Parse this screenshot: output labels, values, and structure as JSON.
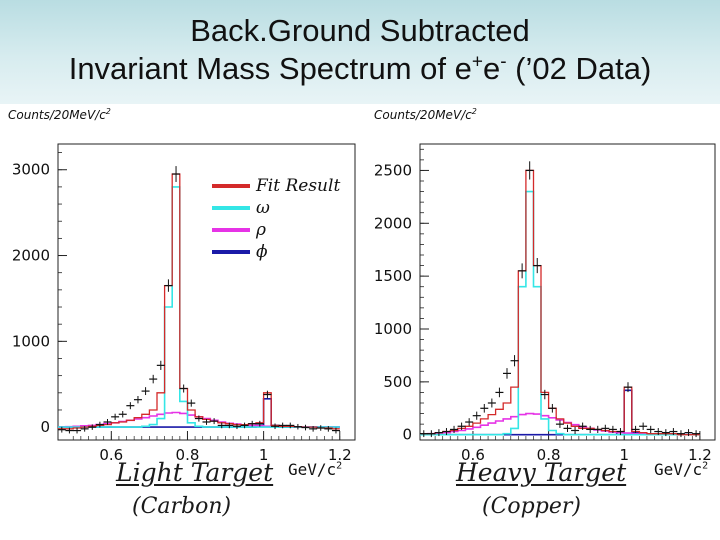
{
  "title": {
    "line1": "Back.Ground Subtracted",
    "line2_pre": "Invariant Mass Spectrum of e",
    "sup_plus": "+",
    "line2_mid": "e",
    "sup_minus": "-",
    "line2_post": " (’02 Data)"
  },
  "colors": {
    "fit": "#d42a2a",
    "omega": "#34e6e6",
    "rho": "#e633e6",
    "phi": "#1a1aa8",
    "header_bg": "#c8e6ea",
    "data": "#111111"
  },
  "legend": {
    "items": [
      {
        "label": "Fit Result",
        "color_key": "fit"
      },
      {
        "label": "ω",
        "color_key": "omega"
      },
      {
        "label": "ρ",
        "color_key": "rho"
      },
      {
        "label": "ϕ",
        "color_key": "phi"
      }
    ]
  },
  "panels": [
    {
      "ylabel_base": "Counts/20MeV/c",
      "ylabel_sup": "2",
      "unit_base": "GeV/c",
      "unit_sup": "2",
      "target_line1": "Light Target",
      "target_line2": "(Carbon)"
    },
    {
      "ylabel_base": "Counts/20MeV/c",
      "ylabel_sup": "2",
      "unit_base": "GeV/c",
      "unit_sup": "2",
      "target_line1": "Heavy Target",
      "target_line2": "(Copper)"
    }
  ],
  "chart_data": [
    {
      "type": "line",
      "name": "Light Target (Carbon)",
      "xlabel": "GeV/c2",
      "ylabel": "Counts/20MeV/c2",
      "xlim": [
        0.46,
        1.24
      ],
      "ylim": [
        -150,
        3300
      ],
      "xticks": [
        0.6,
        0.8,
        1,
        1.2
      ],
      "xtick_labels": [
        "0.6",
        "0.8",
        "1",
        "1.2"
      ],
      "yticks": [
        0,
        1000,
        2000,
        3000
      ],
      "ytick_labels": [
        "0",
        "1000",
        "2000",
        "3000"
      ],
      "x": [
        0.47,
        0.49,
        0.51,
        0.53,
        0.55,
        0.57,
        0.59,
        0.61,
        0.63,
        0.65,
        0.67,
        0.69,
        0.71,
        0.73,
        0.75,
        0.77,
        0.79,
        0.81,
        0.83,
        0.85,
        0.87,
        0.89,
        0.91,
        0.93,
        0.95,
        0.97,
        0.99,
        1.01,
        1.03,
        1.05,
        1.07,
        1.09,
        1.11,
        1.13,
        1.15,
        1.17,
        1.19
      ],
      "data": [
        -30,
        -40,
        -40,
        -20,
        0,
        30,
        60,
        120,
        150,
        250,
        320,
        420,
        560,
        720,
        1650,
        2950,
        450,
        280,
        100,
        60,
        70,
        20,
        20,
        10,
        20,
        40,
        40,
        380,
        10,
        20,
        20,
        5,
        -5,
        -20,
        -10,
        -20,
        -40
      ],
      "series": [
        {
          "name": "Fit Result",
          "color_key": "fit",
          "values": [
            -20,
            -20,
            -10,
            0,
            10,
            20,
            30,
            50,
            60,
            80,
            110,
            150,
            200,
            400,
            1650,
            2950,
            450,
            200,
            120,
            90,
            70,
            50,
            40,
            30,
            30,
            40,
            50,
            400,
            20,
            10,
            10,
            5,
            0,
            0,
            -10,
            -10,
            -20
          ]
        },
        {
          "name": "ω",
          "color_key": "omega",
          "values": [
            0,
            0,
            0,
            0,
            0,
            0,
            0,
            0,
            0,
            0,
            0,
            10,
            30,
            100,
            1400,
            2800,
            300,
            50,
            10,
            0,
            0,
            0,
            0,
            0,
            0,
            0,
            0,
            0,
            0,
            0,
            0,
            0,
            0,
            0,
            0,
            0,
            0
          ]
        },
        {
          "name": "ρ",
          "color_key": "rho",
          "values": [
            0,
            5,
            10,
            15,
            20,
            30,
            40,
            50,
            65,
            80,
            95,
            110,
            130,
            150,
            165,
            170,
            160,
            140,
            120,
            100,
            80,
            60,
            45,
            35,
            25,
            20,
            15,
            10,
            8,
            5,
            5,
            3,
            2,
            2,
            0,
            0,
            0
          ]
        },
        {
          "name": "ϕ",
          "color_key": "phi",
          "values": [
            0,
            0,
            0,
            0,
            0,
            0,
            0,
            0,
            0,
            0,
            0,
            0,
            0,
            0,
            0,
            0,
            0,
            0,
            0,
            0,
            0,
            0,
            0,
            0,
            0,
            0,
            20,
            330,
            20,
            0,
            0,
            0,
            0,
            0,
            0,
            0,
            0
          ]
        }
      ]
    },
    {
      "type": "line",
      "name": "Heavy Target (Copper)",
      "xlabel": "GeV/c2",
      "ylabel": "Counts/20MeV/c2",
      "xlim": [
        0.46,
        1.24
      ],
      "ylim": [
        -50,
        2750
      ],
      "xticks": [
        0.6,
        0.8,
        1,
        1.2
      ],
      "xtick_labels": [
        "0.6",
        "0.8",
        "1",
        "1.2"
      ],
      "yticks": [
        0,
        500,
        1000,
        1500,
        2000,
        2500
      ],
      "ytick_labels": [
        "0",
        "500",
        "1000",
        "1500",
        "2000",
        "2500"
      ],
      "x": [
        0.47,
        0.49,
        0.51,
        0.53,
        0.55,
        0.57,
        0.59,
        0.61,
        0.63,
        0.65,
        0.67,
        0.69,
        0.71,
        0.73,
        0.75,
        0.77,
        0.79,
        0.81,
        0.83,
        0.85,
        0.87,
        0.89,
        0.91,
        0.93,
        0.95,
        0.97,
        0.99,
        1.01,
        1.03,
        1.05,
        1.07,
        1.09,
        1.11,
        1.13,
        1.15,
        1.17,
        1.19
      ],
      "data": [
        10,
        10,
        20,
        30,
        50,
        80,
        120,
        180,
        250,
        300,
        400,
        580,
        700,
        1550,
        2500,
        1600,
        380,
        250,
        100,
        60,
        40,
        80,
        50,
        50,
        60,
        50,
        30,
        450,
        50,
        80,
        50,
        30,
        20,
        30,
        10,
        20,
        10
      ],
      "series": [
        {
          "name": "Fit Result",
          "color_key": "fit",
          "values": [
            10,
            10,
            20,
            30,
            40,
            60,
            80,
            110,
            150,
            190,
            240,
            300,
            450,
            1550,
            2500,
            1600,
            400,
            250,
            150,
            110,
            80,
            60,
            60,
            50,
            40,
            30,
            30,
            450,
            30,
            20,
            10,
            10,
            10,
            10,
            0,
            0,
            0
          ]
        },
        {
          "name": "ω",
          "color_key": "omega",
          "values": [
            0,
            0,
            0,
            0,
            0,
            0,
            0,
            0,
            0,
            0,
            0,
            10,
            60,
            1400,
            2300,
            1400,
            150,
            40,
            10,
            0,
            0,
            0,
            0,
            0,
            0,
            0,
            0,
            0,
            0,
            0,
            0,
            0,
            0,
            0,
            0,
            0,
            0
          ]
        },
        {
          "name": "ρ",
          "color_key": "rho",
          "values": [
            5,
            10,
            15,
            20,
            30,
            40,
            55,
            70,
            90,
            110,
            130,
            150,
            170,
            190,
            200,
            195,
            180,
            160,
            140,
            115,
            95,
            75,
            60,
            45,
            35,
            25,
            20,
            15,
            10,
            8,
            5,
            5,
            3,
            2,
            0,
            0,
            0
          ]
        },
        {
          "name": "ϕ",
          "color_key": "phi",
          "values": [
            0,
            0,
            0,
            0,
            0,
            0,
            0,
            0,
            0,
            0,
            0,
            0,
            0,
            0,
            0,
            0,
            0,
            0,
            0,
            0,
            0,
            0,
            0,
            0,
            0,
            0,
            20,
            420,
            20,
            0,
            0,
            0,
            0,
            0,
            0,
            0,
            0
          ]
        }
      ]
    }
  ]
}
